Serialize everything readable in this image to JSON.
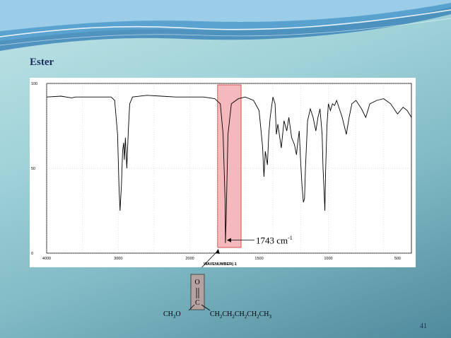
{
  "slide": {
    "title": "Ester",
    "page_number": "41",
    "annotation": {
      "value": "1743 cm",
      "exponent": "-1"
    }
  },
  "colors": {
    "highlight_fill": "#f5b8bc",
    "highlight_stroke": "#d03030",
    "title_color": "#1a2f5a",
    "molecule_box": "#b5a29f"
  },
  "molecule": {
    "oxygen": "O",
    "carbon": "C",
    "left_group": [
      "CH",
      "3",
      "O"
    ],
    "right_group": [
      "CH",
      "2",
      "CH",
      "2",
      "CH",
      "2",
      "CH",
      "2",
      "CH",
      "3"
    ]
  },
  "chart_data": {
    "type": "line",
    "xlabel": "WAVENUMBER(-1",
    "ylabel": "",
    "xlim": [
      4000,
      400
    ],
    "ylim": [
      0,
      100
    ],
    "x_ticks": [
      "4000",
      "3000",
      "2000",
      "1500",
      "1000",
      "500"
    ],
    "y_ticks": [
      "100",
      "50",
      "0"
    ],
    "grid": true,
    "highlight_range": [
      1800,
      1630
    ],
    "series": [
      {
        "values": [
          [
            4000,
            92
          ],
          [
            3800,
            92.5
          ],
          [
            3650,
            91.5
          ],
          [
            3600,
            92
          ],
          [
            3500,
            92
          ],
          [
            3100,
            92
          ],
          [
            3050,
            90
          ],
          [
            3010,
            70
          ],
          [
            2990,
            40
          ],
          [
            2975,
            25
          ],
          [
            2955,
            40
          ],
          [
            2940,
            60
          ],
          [
            2925,
            65
          ],
          [
            2915,
            55
          ],
          [
            2900,
            68
          ],
          [
            2880,
            50
          ],
          [
            2860,
            72
          ],
          [
            2840,
            88
          ],
          [
            2800,
            92
          ],
          [
            2600,
            93
          ],
          [
            2400,
            92.5
          ],
          [
            2200,
            92
          ],
          [
            2000,
            92
          ],
          [
            1900,
            92
          ],
          [
            1820,
            91
          ],
          [
            1780,
            88
          ],
          [
            1760,
            70
          ],
          [
            1745,
            30
          ],
          [
            1743,
            6
          ],
          [
            1738,
            20
          ],
          [
            1725,
            70
          ],
          [
            1700,
            88
          ],
          [
            1650,
            91
          ],
          [
            1600,
            92
          ],
          [
            1540,
            90
          ],
          [
            1500,
            84
          ],
          [
            1475,
            63
          ],
          [
            1465,
            45
          ],
          [
            1455,
            60
          ],
          [
            1440,
            52
          ],
          [
            1430,
            70
          ],
          [
            1420,
            80
          ],
          [
            1400,
            92
          ],
          [
            1385,
            88
          ],
          [
            1375,
            70
          ],
          [
            1365,
            76
          ],
          [
            1340,
            62
          ],
          [
            1320,
            78
          ],
          [
            1300,
            72
          ],
          [
            1285,
            80
          ],
          [
            1265,
            68
          ],
          [
            1245,
            64
          ],
          [
            1230,
            58
          ],
          [
            1220,
            66
          ],
          [
            1210,
            72
          ],
          [
            1200,
            54
          ],
          [
            1190,
            40
          ],
          [
            1180,
            30
          ],
          [
            1172,
            32
          ],
          [
            1165,
            50
          ],
          [
            1150,
            78
          ],
          [
            1130,
            85
          ],
          [
            1110,
            80
          ],
          [
            1090,
            72
          ],
          [
            1075,
            80
          ],
          [
            1060,
            85
          ],
          [
            1045,
            70
          ],
          [
            1038,
            50
          ],
          [
            1030,
            35
          ],
          [
            1025,
            25
          ],
          [
            1020,
            48
          ],
          [
            1010,
            75
          ],
          [
            1000,
            88
          ],
          [
            985,
            84
          ],
          [
            970,
            88
          ],
          [
            955,
            87
          ],
          [
            940,
            90
          ],
          [
            900,
            80
          ],
          [
            870,
            70
          ],
          [
            850,
            80
          ],
          [
            830,
            88
          ],
          [
            800,
            90
          ],
          [
            760,
            85
          ],
          [
            730,
            80
          ],
          [
            700,
            88
          ],
          [
            650,
            90
          ],
          [
            600,
            91
          ],
          [
            550,
            88
          ],
          [
            500,
            82
          ],
          [
            460,
            86
          ],
          [
            430,
            84
          ],
          [
            400,
            80
          ]
        ]
      }
    ]
  }
}
